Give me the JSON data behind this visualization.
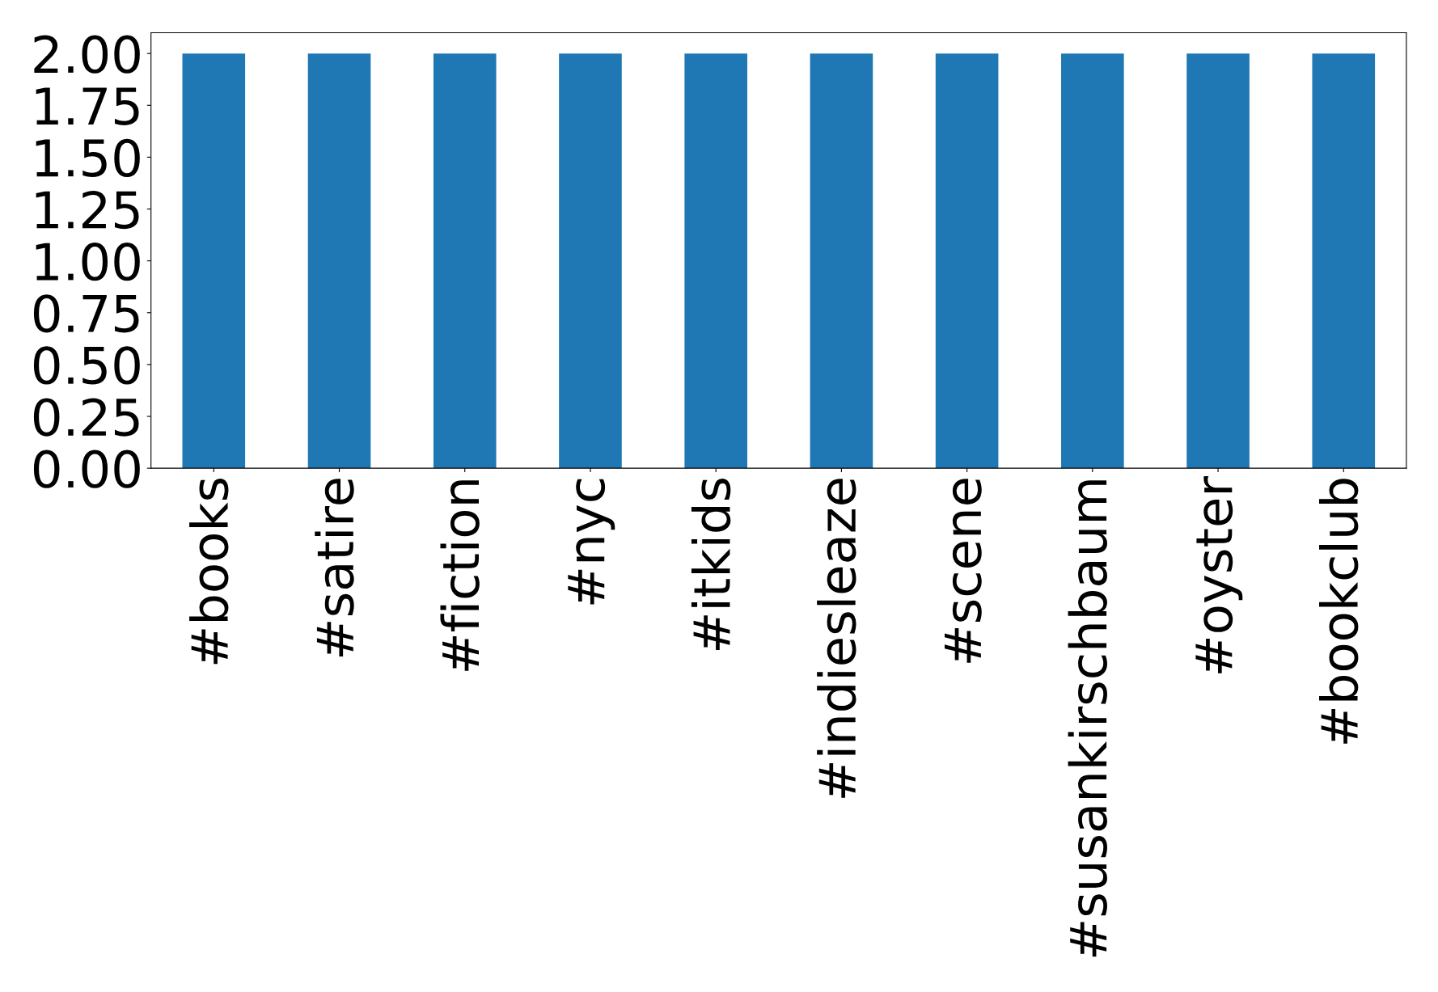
{
  "chart_data": {
    "type": "bar",
    "categories": [
      "#books",
      "#satire",
      "#fiction",
      "#nyc",
      "#itkids",
      "#indiesleaze",
      "#scene",
      "#susankirschbaum",
      "#oyster",
      "#bookclub"
    ],
    "values": [
      2,
      2,
      2,
      2,
      2,
      2,
      2,
      2,
      2,
      2
    ],
    "color": "#1f77b4",
    "ylim": [
      0,
      2.1
    ],
    "yticks": [
      {
        "value": 0,
        "label": "0.00"
      },
      {
        "value": 0.25,
        "label": "0.25"
      },
      {
        "value": 0.5,
        "label": "0.50"
      },
      {
        "value": 0.75,
        "label": "0.75"
      },
      {
        "value": 1,
        "label": "1.00"
      },
      {
        "value": 1.25,
        "label": "1.25"
      },
      {
        "value": 1.5,
        "label": "1.50"
      },
      {
        "value": 1.75,
        "label": "1.75"
      },
      {
        "value": 2,
        "label": "2.00"
      }
    ],
    "grid": false,
    "legend": false
  }
}
